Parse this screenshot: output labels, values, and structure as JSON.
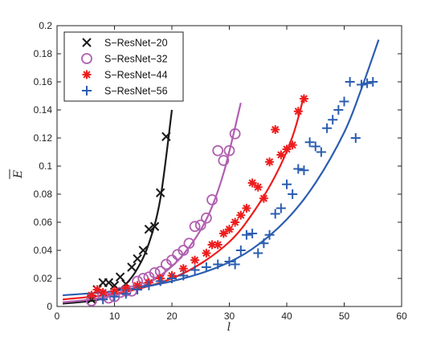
{
  "chart_data": {
    "type": "scatter",
    "xlabel": "l",
    "ylabel": "E",
    "xlim": [
      0,
      60
    ],
    "ylim": [
      0,
      0.2
    ],
    "xticks": [
      "0",
      "10",
      "20",
      "30",
      "40",
      "50",
      "60"
    ],
    "yticks": [
      "0",
      "0.02",
      "0.04",
      "0.06",
      "0.08",
      "0.1",
      "0.12",
      "0.14",
      "0.16",
      "0.18",
      "0.2"
    ],
    "grid": false,
    "legend_position": "top-left",
    "series": [
      {
        "name": "S−ResNet−20",
        "color": "#1a1a1a",
        "marker": "x",
        "points": [
          [
            6,
            0.005
          ],
          [
            7,
            0.012
          ],
          [
            8,
            0.017
          ],
          [
            9,
            0.017
          ],
          [
            10,
            0.015
          ],
          [
            11,
            0.021
          ],
          [
            12,
            0.016
          ],
          [
            13,
            0.028
          ],
          [
            14,
            0.034
          ],
          [
            15,
            0.04
          ],
          [
            16,
            0.055
          ],
          [
            17,
            0.057
          ],
          [
            18,
            0.081
          ],
          [
            19,
            0.121
          ]
        ],
        "fit": [
          [
            1,
            0.002
          ],
          [
            6,
            0.004
          ],
          [
            8,
            0.006
          ],
          [
            10,
            0.01
          ],
          [
            12,
            0.016
          ],
          [
            14,
            0.027
          ],
          [
            16,
            0.045
          ],
          [
            18,
            0.077
          ],
          [
            20,
            0.14
          ]
        ]
      },
      {
        "name": "S−ResNet−32",
        "color": "#b05fb0",
        "marker": "o",
        "points": [
          [
            6,
            0.004
          ],
          [
            8,
            0.008
          ],
          [
            9,
            0.006
          ],
          [
            10,
            0.007
          ],
          [
            11,
            0.01
          ],
          [
            12,
            0.011
          ],
          [
            13,
            0.011
          ],
          [
            14,
            0.018
          ],
          [
            15,
            0.02
          ],
          [
            16,
            0.021
          ],
          [
            17,
            0.024
          ],
          [
            18,
            0.025
          ],
          [
            19,
            0.03
          ],
          [
            20,
            0.033
          ],
          [
            21,
            0.037
          ],
          [
            22,
            0.04
          ],
          [
            23,
            0.045
          ],
          [
            24,
            0.057
          ],
          [
            25,
            0.058
          ],
          [
            26,
            0.063
          ],
          [
            27,
            0.076
          ],
          [
            28,
            0.111
          ],
          [
            29,
            0.104
          ],
          [
            30,
            0.111
          ],
          [
            31,
            0.123
          ]
        ],
        "fit": [
          [
            1,
            0.003
          ],
          [
            6,
            0.005
          ],
          [
            10,
            0.008
          ],
          [
            14,
            0.013
          ],
          [
            18,
            0.022
          ],
          [
            22,
            0.037
          ],
          [
            26,
            0.062
          ],
          [
            29,
            0.095
          ],
          [
            32,
            0.145
          ]
        ]
      },
      {
        "name": "S−ResNet−44",
        "color": "#ee1c1c",
        "marker": "*",
        "points": [
          [
            6,
            0.008
          ],
          [
            7,
            0.012
          ],
          [
            8,
            0.01
          ],
          [
            10,
            0.011
          ],
          [
            12,
            0.013
          ],
          [
            14,
            0.015
          ],
          [
            16,
            0.017
          ],
          [
            18,
            0.02
          ],
          [
            20,
            0.022
          ],
          [
            22,
            0.027
          ],
          [
            24,
            0.033
          ],
          [
            26,
            0.038
          ],
          [
            27,
            0.044
          ],
          [
            28,
            0.044
          ],
          [
            29,
            0.052
          ],
          [
            30,
            0.055
          ],
          [
            31,
            0.06
          ],
          [
            32,
            0.065
          ],
          [
            33,
            0.07
          ],
          [
            34,
            0.088
          ],
          [
            35,
            0.085
          ],
          [
            36,
            0.077
          ],
          [
            37,
            0.103
          ],
          [
            38,
            0.126
          ],
          [
            39,
            0.108
          ],
          [
            40,
            0.112
          ],
          [
            41,
            0.115
          ],
          [
            42,
            0.139
          ],
          [
            43,
            0.148
          ]
        ],
        "fit": [
          [
            1,
            0.005
          ],
          [
            10,
            0.009
          ],
          [
            18,
            0.017
          ],
          [
            24,
            0.028
          ],
          [
            30,
            0.046
          ],
          [
            34,
            0.066
          ],
          [
            38,
            0.093
          ],
          [
            41,
            0.121
          ],
          [
            43,
            0.15
          ]
        ]
      },
      {
        "name": "S−ResNet−56",
        "color": "#2b5db0",
        "marker": "+",
        "points": [
          [
            8,
            0.005
          ],
          [
            10,
            0.007
          ],
          [
            12,
            0.009
          ],
          [
            14,
            0.012
          ],
          [
            16,
            0.015
          ],
          [
            18,
            0.018
          ],
          [
            20,
            0.02
          ],
          [
            22,
            0.022
          ],
          [
            24,
            0.026
          ],
          [
            26,
            0.028
          ],
          [
            28,
            0.03
          ],
          [
            30,
            0.032
          ],
          [
            31,
            0.03
          ],
          [
            32,
            0.04
          ],
          [
            33,
            0.051
          ],
          [
            34,
            0.052
          ],
          [
            35,
            0.038
          ],
          [
            36,
            0.045
          ],
          [
            37,
            0.051
          ],
          [
            38,
            0.066
          ],
          [
            39,
            0.07
          ],
          [
            40,
            0.087
          ],
          [
            41,
            0.08
          ],
          [
            42,
            0.098
          ],
          [
            43,
            0.097
          ],
          [
            44,
            0.117
          ],
          [
            45,
            0.114
          ],
          [
            46,
            0.11
          ],
          [
            47,
            0.127
          ],
          [
            48,
            0.133
          ],
          [
            49,
            0.14
          ],
          [
            50,
            0.146
          ],
          [
            51,
            0.16
          ],
          [
            52,
            0.12
          ],
          [
            53,
            0.158
          ],
          [
            54,
            0.159
          ],
          [
            55,
            0.16
          ]
        ],
        "fit": [
          [
            1,
            0.008
          ],
          [
            10,
            0.011
          ],
          [
            20,
            0.018
          ],
          [
            28,
            0.028
          ],
          [
            34,
            0.041
          ],
          [
            40,
            0.062
          ],
          [
            45,
            0.088
          ],
          [
            50,
            0.124
          ],
          [
            53,
            0.155
          ],
          [
            56,
            0.19
          ]
        ]
      }
    ]
  }
}
